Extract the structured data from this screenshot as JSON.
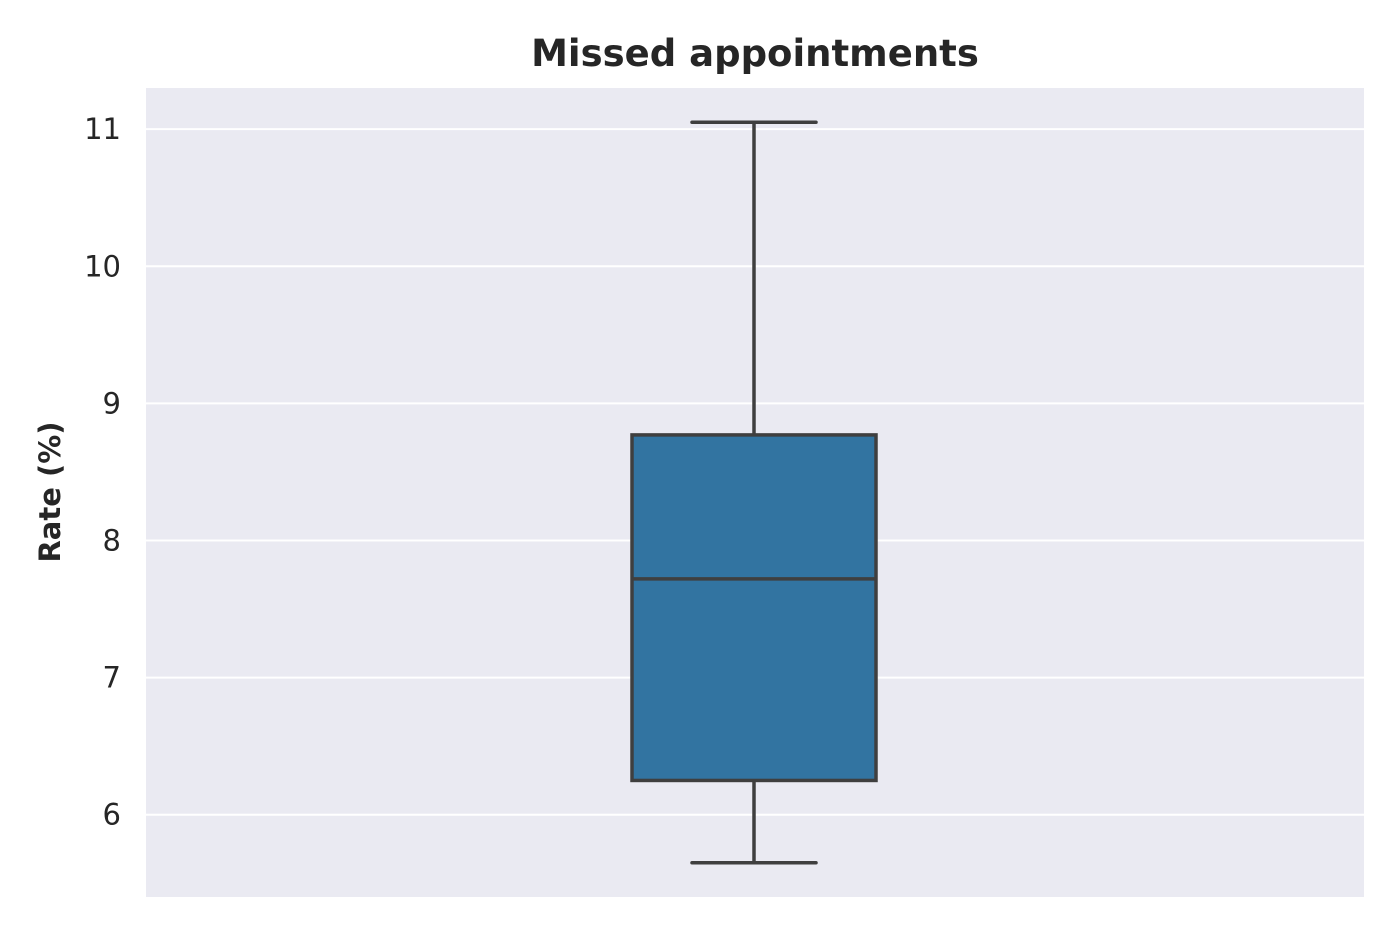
{
  "chart_data": {
    "type": "box",
    "title": "Missed appointments",
    "xlabel": "",
    "ylabel": "Rate (%)",
    "ylim": [
      5.4,
      11.3
    ],
    "yticks": [
      6,
      7,
      8,
      9,
      10,
      11
    ],
    "grid": true,
    "series": [
      {
        "whisker_low": 5.65,
        "q1": 6.25,
        "median": 7.72,
        "q3": 8.77,
        "whisker_high": 11.05
      }
    ],
    "colors": {
      "background": "#eaeaf2",
      "grid": "#ffffff",
      "box_fill": "#3274a1",
      "box_edge": "#3f3f3f"
    }
  }
}
